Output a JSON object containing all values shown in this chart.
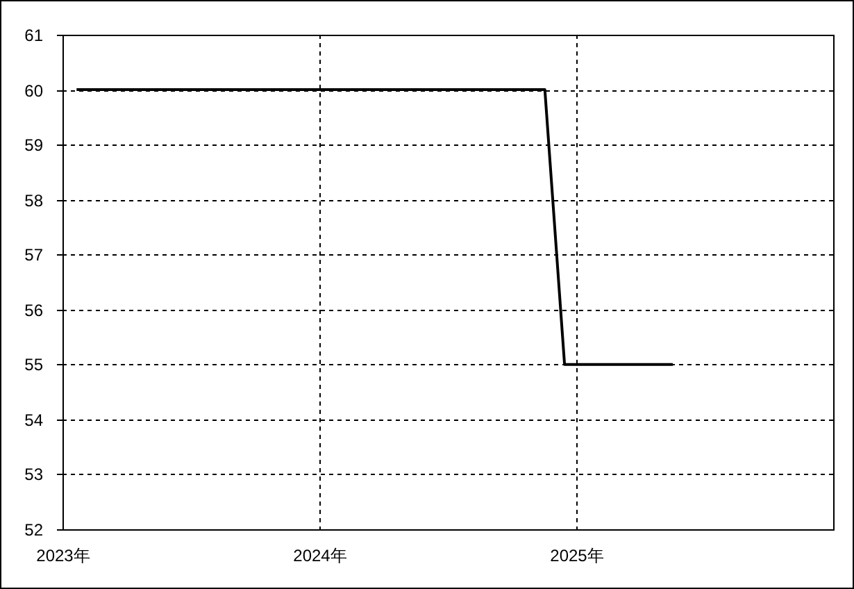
{
  "chart_data": {
    "type": "line",
    "x": [
      "2023-01-21",
      "2024-11-17",
      "2024-12-15",
      "2025-05-18"
    ],
    "series": [
      {
        "color": "#000000",
        "values": [
          60,
          60,
          55,
          55
        ]
      }
    ],
    "xlim": [
      "2023-01-01",
      "2026-01-01"
    ],
    "xticks": [
      {
        "value": "2023-01-01",
        "label": "2023年"
      },
      {
        "value": "2024-01-01",
        "label": "2024年"
      },
      {
        "value": "2025-01-01",
        "label": "2025年"
      }
    ],
    "ylim": [
      52,
      61
    ],
    "yticks": [
      52,
      53,
      54,
      55,
      56,
      57,
      58,
      59,
      60,
      61
    ],
    "grid": true,
    "line_style": "solid",
    "marker": "none"
  }
}
